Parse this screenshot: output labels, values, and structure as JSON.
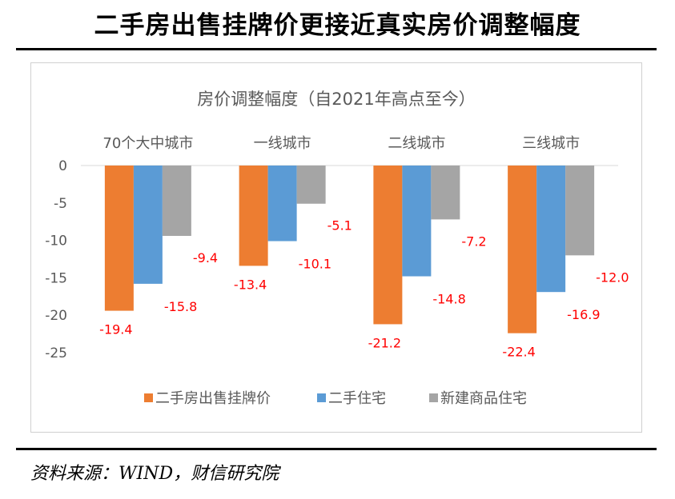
{
  "title": "二手房出售挂牌价更接近真实房价调整幅度",
  "source": "资料来源：WIND，财信研究院",
  "chart_data": {
    "type": "bar",
    "title": "房价调整幅度（自2021年高点至今）",
    "categories": [
      "70个大中城市",
      "一线城市",
      "二线城市",
      "三线城市"
    ],
    "series": [
      {
        "name": "二手房出售挂牌价",
        "values": [
          -19.4,
          -13.4,
          -21.2,
          -22.4
        ],
        "color": "#ED7D31"
      },
      {
        "name": "二手住宅",
        "values": [
          -15.8,
          -10.1,
          -14.8,
          -16.9
        ],
        "color": "#5B9BD5"
      },
      {
        "name": "新建商品住宅",
        "values": [
          -9.4,
          -5.1,
          -7.2,
          -12.0
        ],
        "color": "#A5A5A5"
      }
    ],
    "ylim": [
      -25,
      0
    ],
    "yticks": [
      0,
      -5,
      -10,
      -15,
      -20,
      -25
    ],
    "xaxis_position": "top",
    "grid": false,
    "legend_position": "bottom",
    "data_label_color": "#FF0000"
  }
}
